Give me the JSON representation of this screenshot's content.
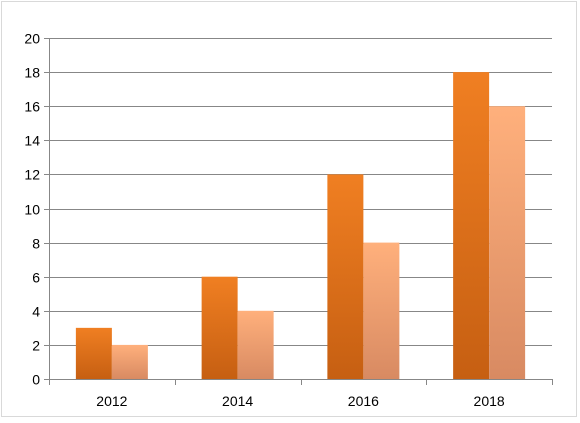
{
  "chart_data": {
    "type": "bar",
    "categories": [
      "2012",
      "2014",
      "2016",
      "2018"
    ],
    "series": [
      {
        "values": [
          3,
          6,
          12,
          18
        ],
        "color_top": "#f07f22",
        "color_bottom": "#c65f12"
      },
      {
        "values": [
          2,
          4,
          8,
          16
        ],
        "color_top": "#ffb07c",
        "color_bottom": "#d88a62"
      }
    ],
    "ylim": [
      0,
      20
    ],
    "yticks": [
      "0",
      "2",
      "4",
      "6",
      "8",
      "10",
      "12",
      "14",
      "16",
      "18",
      "20"
    ],
    "title": "",
    "xlabel": "",
    "ylabel": "",
    "grid": true,
    "legend": "none",
    "gridline_color": "#878787",
    "axis_color": "#878787"
  }
}
